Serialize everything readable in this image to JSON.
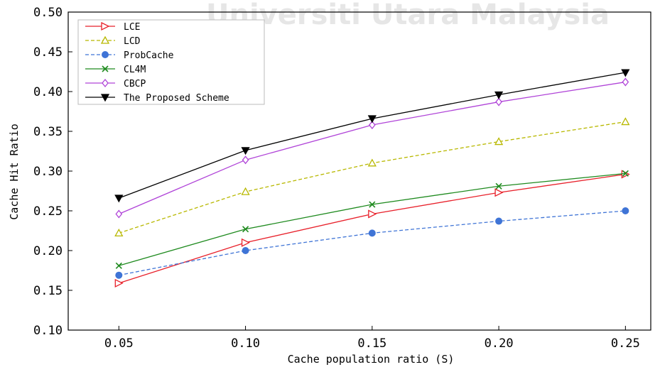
{
  "watermark": "Universiti Utara Malaysia",
  "chart_data": {
    "type": "line",
    "title": "",
    "xlabel": "Cache population ratio (S)",
    "ylabel": "Cache Hit Ratio",
    "x": [
      0.05,
      0.1,
      0.15,
      0.2,
      0.25
    ],
    "x_tick_labels": [
      "0.05",
      "0.10",
      "0.15",
      "0.20",
      "0.25"
    ],
    "xlim": [
      0.03,
      0.26
    ],
    "ylim": [
      0.1,
      0.5
    ],
    "y_ticks": [
      0.1,
      0.15,
      0.2,
      0.25,
      0.3,
      0.35,
      0.4,
      0.45,
      0.5
    ],
    "y_tick_labels": [
      "0.10",
      "0.15",
      "0.20",
      "0.25",
      "0.30",
      "0.35",
      "0.40",
      "0.45",
      "0.50"
    ],
    "grid": false,
    "legend_position": "top-left",
    "series": [
      {
        "name": "LCE",
        "values": [
          0.159,
          0.21,
          0.246,
          0.273,
          0.296
        ],
        "color": "#e8202a",
        "marker": "triangle-right",
        "dash": "solid"
      },
      {
        "name": "LCD",
        "values": [
          0.222,
          0.274,
          0.31,
          0.337,
          0.362
        ],
        "color": "#b8b800",
        "marker": "triangle-up",
        "dash": "dashed"
      },
      {
        "name": "ProbCache",
        "values": [
          0.169,
          0.2,
          0.222,
          0.237,
          0.25
        ],
        "color": "#3f74d6",
        "marker": "circle",
        "dash": "dashed"
      },
      {
        "name": "CL4M",
        "values": [
          0.181,
          0.227,
          0.258,
          0.281,
          0.297
        ],
        "color": "#1e8a1e",
        "marker": "x",
        "dash": "solid"
      },
      {
        "name": "CBCP",
        "values": [
          0.246,
          0.314,
          0.358,
          0.387,
          0.412
        ],
        "color": "#b044d8",
        "marker": "diamond",
        "dash": "solid"
      },
      {
        "name": "The Proposed Scheme",
        "values": [
          0.266,
          0.326,
          0.366,
          0.396,
          0.424
        ],
        "color": "#000000",
        "marker": "triangle-down",
        "dash": "solid"
      }
    ]
  }
}
